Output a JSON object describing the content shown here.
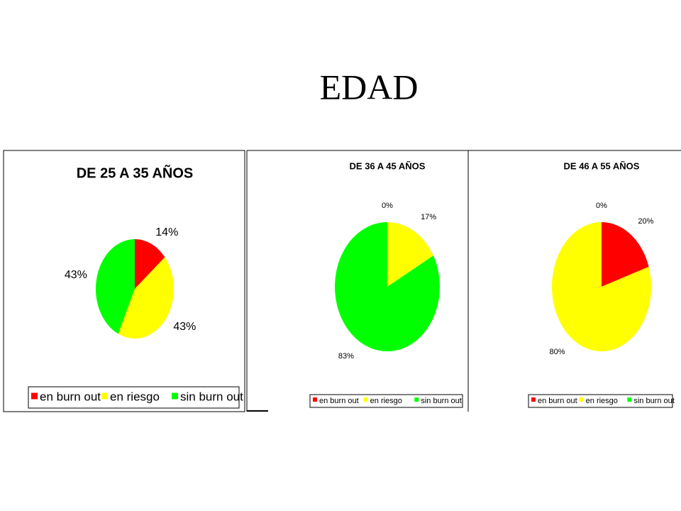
{
  "title": "EDAD",
  "chart_data": [
    {
      "type": "pie",
      "title": "DE 25 A 35 AÑOS",
      "categories": [
        "en burn out",
        "en riesgo",
        "sin burn out"
      ],
      "values": [
        14,
        43,
        43
      ],
      "value_labels": [
        "14%",
        "43%",
        "43%"
      ],
      "colors": [
        "#ff0000",
        "#ffff00",
        "#00ff00"
      ]
    },
    {
      "type": "pie",
      "title": "DE 36 A 45 AÑOS",
      "categories": [
        "en burn out",
        "en riesgo",
        "sin burn out"
      ],
      "values": [
        0,
        17,
        83
      ],
      "value_labels": [
        "0%",
        "17%",
        "83%"
      ],
      "colors": [
        "#ff0000",
        "#ffff00",
        "#00ff00"
      ]
    },
    {
      "type": "pie",
      "title": "DE 46 A 55 AÑOS",
      "categories": [
        "en burn out",
        "en riesgo",
        "sin burn out"
      ],
      "values": [
        20,
        80,
        0
      ],
      "value_labels": [
        "20%",
        "80%",
        "0%"
      ],
      "colors": [
        "#ff0000",
        "#ffff00",
        "#00ff00"
      ]
    }
  ]
}
